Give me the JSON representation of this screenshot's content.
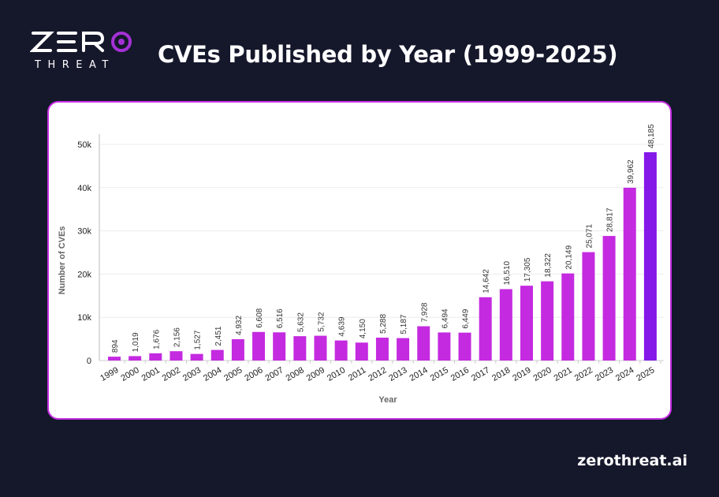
{
  "header": {
    "logo_text": "ZERO THREAT",
    "title": "CVEs Published by Year (1999-2025)"
  },
  "footer": {
    "site": "zerothreat.ai"
  },
  "colors": {
    "bar": "#c42ae0",
    "highlight_bar": "#8418e8",
    "border": "#c530e3",
    "background": "#15172b"
  },
  "chart_data": {
    "type": "bar",
    "title": "CVEs Published by Year (1999-2025)",
    "xlabel": "Year",
    "ylabel": "Number of CVEs",
    "ylim": [
      0,
      50000
    ],
    "yticks": [
      "0",
      "10k",
      "20k",
      "30k",
      "40k",
      "50k"
    ],
    "grid": true,
    "categories": [
      "1999",
      "2000",
      "2001",
      "2002",
      "2003",
      "2004",
      "2005",
      "2006",
      "2007",
      "2008",
      "2009",
      "2010",
      "2011",
      "2012",
      "2013",
      "2014",
      "2015",
      "2016",
      "2017",
      "2018",
      "2019",
      "2020",
      "2021",
      "2022",
      "2023",
      "2024",
      "2025"
    ],
    "values": [
      894,
      1019,
      1676,
      2156,
      1527,
      2451,
      4932,
      6608,
      6516,
      5632,
      5732,
      4639,
      4150,
      5288,
      5187,
      7928,
      6494,
      6449,
      14642,
      16510,
      17305,
      18322,
      20149,
      25071,
      28817,
      39962,
      48185
    ],
    "labels": [
      "894",
      "1,019",
      "1,676",
      "2,156",
      "1,527",
      "2,451",
      "4,932",
      "6,608",
      "6,516",
      "5,632",
      "5,732",
      "4,639",
      "4,150",
      "5,288",
      "5,187",
      "7,928",
      "6,494",
      "6,449",
      "14,642",
      "16,510",
      "17,305",
      "18,322",
      "20,149",
      "25,071",
      "28,817",
      "39,962",
      "48,185"
    ]
  }
}
